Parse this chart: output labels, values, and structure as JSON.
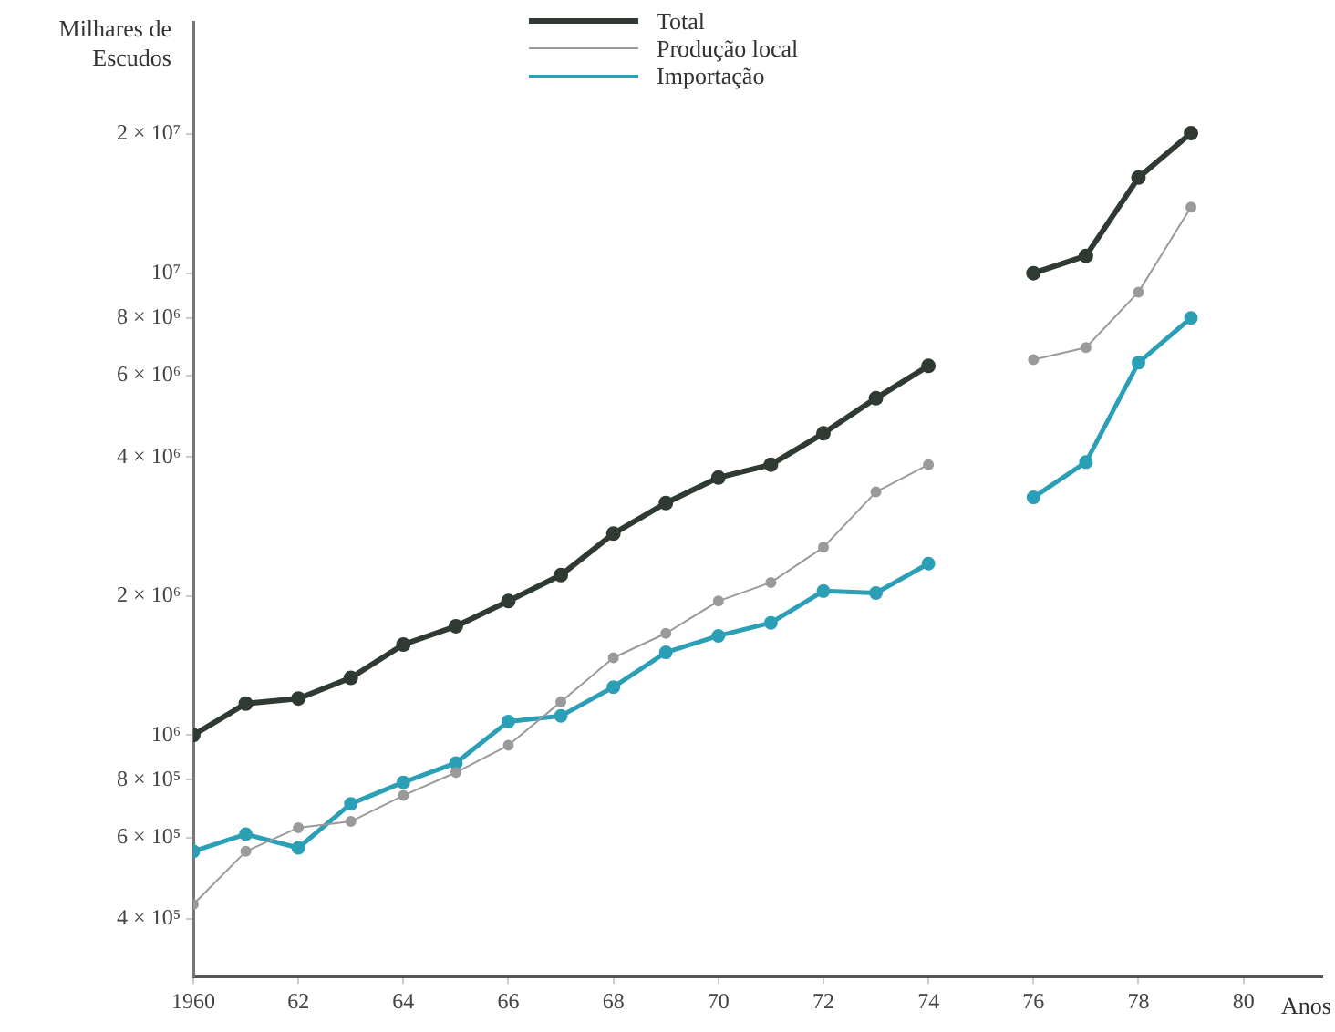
{
  "chart_data": {
    "type": "line",
    "ylabel": "Milhares de Escudos",
    "xlabel": "Anos",
    "x": [
      1960,
      1961,
      1962,
      1963,
      1964,
      1965,
      1966,
      1967,
      1968,
      1969,
      1970,
      1971,
      1972,
      1973,
      1974,
      1975,
      1976,
      1977,
      1978,
      1979
    ],
    "series": [
      {
        "name": "Total",
        "color": "#2f3a32",
        "values": [
          1000000,
          1170000,
          1200000,
          1330000,
          1570000,
          1720000,
          1950000,
          2220000,
          2730000,
          3180000,
          3610000,
          3850000,
          4500000,
          5360000,
          6300000,
          null,
          10000000,
          10900000,
          16100000,
          20100000
        ]
      },
      {
        "name": "Produção local",
        "color": "#9a9a9a",
        "values": [
          430000,
          560000,
          630000,
          650000,
          740000,
          830000,
          950000,
          1180000,
          1470000,
          1660000,
          1950000,
          2140000,
          2550000,
          3360000,
          3850000,
          null,
          6500000,
          6900000,
          9100000,
          13900000
        ]
      },
      {
        "name": "Importação",
        "color": "#2a9fb5",
        "values": [
          560000,
          610000,
          570000,
          710000,
          790000,
          870000,
          1070000,
          1100000,
          1270000,
          1510000,
          1640000,
          1750000,
          2050000,
          2030000,
          2350000,
          null,
          3270000,
          3900000,
          6400000,
          8000000
        ]
      }
    ],
    "log": "y",
    "ylim": [
      300000,
      35000000
    ],
    "yticks": [
      {
        "value": 400000,
        "label": "4 × 10⁵"
      },
      {
        "value": 600000,
        "label": "6 × 10⁵"
      },
      {
        "value": 800000,
        "label": "8 × 10⁵"
      },
      {
        "value": 1000000,
        "label": "10⁶"
      },
      {
        "value": 2000000,
        "label": "2 × 10⁶"
      },
      {
        "value": 4000000,
        "label": "4 × 10⁶"
      },
      {
        "value": 6000000,
        "label": "6 × 10⁶"
      },
      {
        "value": 8000000,
        "label": "8 × 10⁶"
      },
      {
        "value": 10000000,
        "label": "10⁷"
      },
      {
        "value": 20000000,
        "label": "2 × 10⁷"
      }
    ],
    "xlim": [
      1960,
      1981.5
    ],
    "xticks": [
      1960,
      {
        "value": 1962,
        "label": "62"
      },
      {
        "value": 1964,
        "label": "64"
      },
      {
        "value": 1966,
        "label": "66"
      },
      {
        "value": 1968,
        "label": "68"
      },
      {
        "value": 1970,
        "label": "70"
      },
      {
        "value": 1972,
        "label": "72"
      },
      {
        "value": 1974,
        "label": "74"
      },
      {
        "value": 1976,
        "label": "76"
      },
      {
        "value": 1978,
        "label": "78"
      },
      {
        "value": 1980,
        "label": "80"
      }
    ],
    "grid": false,
    "legend": "top",
    "marker": "circle"
  }
}
